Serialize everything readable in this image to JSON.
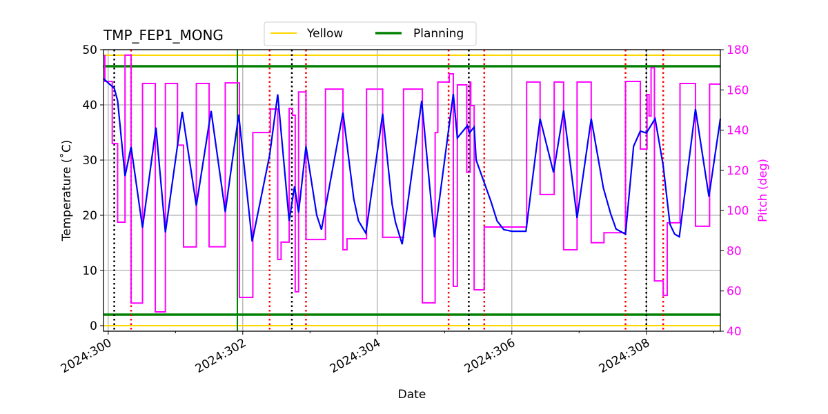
{
  "chart_data": {
    "type": "line",
    "title": "TMP_FEP1_MONG",
    "xlabel": "Date",
    "ylabel": "Temperature ($^\\circ$C)",
    "ylabel_display": "Temperature (˚C)",
    "y2label": "Pitch (deg)",
    "xlim": [
      299.93,
      309.1
    ],
    "ylim": [
      -1,
      50
    ],
    "y2lim": [
      40,
      180
    ],
    "x_ticks": [
      300,
      302,
      304,
      306,
      308
    ],
    "x_tick_labels": [
      "2024:300",
      "2024:302",
      "2024:304",
      "2024:306",
      "2024:308"
    ],
    "x_minor_ticks": [
      301,
      303,
      305,
      307,
      309
    ],
    "y_ticks": [
      0,
      10,
      20,
      30,
      40,
      50
    ],
    "y_tick_labels": [
      "0",
      "10",
      "20",
      "30",
      "40",
      "50"
    ],
    "y2_ticks": [
      40,
      60,
      80,
      100,
      120,
      140,
      160,
      180
    ],
    "y2_tick_labels": [
      "40",
      "60",
      "80",
      "100",
      "120",
      "140",
      "160",
      "180"
    ],
    "grid": true,
    "legend": {
      "placement": "top-center",
      "entries": [
        {
          "label": "Yellow",
          "color": "#ffd700"
        },
        {
          "label": "Planning",
          "color": "#008000"
        }
      ]
    },
    "colors": {
      "temperature": "#0000ff",
      "pitch": "#ff00ff",
      "yellow": "#ffd700",
      "planning": "#008000",
      "red_lines": "#ff0000",
      "black_lines": "#000000",
      "right_axis": "#ff00ff"
    },
    "hlines": {
      "yellow": [
        49,
        0
      ],
      "planning": [
        47,
        2
      ]
    },
    "vlines": {
      "black_dotted": [
        300.09,
        302.73,
        305.36,
        308.0
      ],
      "red_dotted": [
        300.34,
        302.4,
        302.94,
        305.06,
        305.59,
        307.69,
        308.25
      ],
      "green_solid": [
        301.92
      ]
    },
    "temperature": [
      [
        299.93,
        44.75
      ],
      [
        300.09,
        43
      ],
      [
        300.14,
        40.75
      ],
      [
        300.25,
        27.1
      ],
      [
        300.34,
        32.4
      ],
      [
        300.51,
        17.75
      ],
      [
        300.71,
        35.9
      ],
      [
        300.85,
        16.9
      ],
      [
        301.1,
        38.75
      ],
      [
        301.31,
        21.75
      ],
      [
        301.53,
        38.9
      ],
      [
        301.74,
        20.6
      ],
      [
        301.94,
        38.25
      ],
      [
        302.14,
        15.25
      ],
      [
        302.4,
        30.9
      ],
      [
        302.52,
        41.9
      ],
      [
        302.69,
        19
      ],
      [
        302.77,
        25.25
      ],
      [
        302.83,
        20.5
      ],
      [
        302.94,
        32.5
      ],
      [
        303.1,
        20
      ],
      [
        303.17,
        17.4
      ],
      [
        303.49,
        38.6
      ],
      [
        303.65,
        23
      ],
      [
        303.72,
        19
      ],
      [
        303.83,
        16.75
      ],
      [
        304.08,
        38.4
      ],
      [
        304.22,
        22
      ],
      [
        304.27,
        18.75
      ],
      [
        304.37,
        14.75
      ],
      [
        304.66,
        40.75
      ],
      [
        304.85,
        16
      ],
      [
        305.13,
        42
      ],
      [
        305.19,
        34
      ],
      [
        305.34,
        36.25
      ],
      [
        305.37,
        34.9
      ],
      [
        305.44,
        36
      ],
      [
        305.47,
        30
      ],
      [
        305.69,
        22.5
      ],
      [
        305.78,
        19
      ],
      [
        305.88,
        17.4
      ],
      [
        306.0,
        17.1
      ],
      [
        306.21,
        17.1
      ],
      [
        306.42,
        37.5
      ],
      [
        306.62,
        27.75
      ],
      [
        306.77,
        39
      ],
      [
        306.97,
        19.5
      ],
      [
        307.18,
        37.5
      ],
      [
        307.36,
        25
      ],
      [
        307.47,
        20.25
      ],
      [
        307.55,
        17.5
      ],
      [
        307.69,
        16.6
      ],
      [
        307.81,
        32.5
      ],
      [
        307.91,
        35.25
      ],
      [
        308.0,
        34.9
      ],
      [
        308.13,
        37.5
      ],
      [
        308.25,
        29
      ],
      [
        308.35,
        18.4
      ],
      [
        308.42,
        16.6
      ],
      [
        308.49,
        16.1
      ],
      [
        308.73,
        39.25
      ],
      [
        308.93,
        23.4
      ],
      [
        309.1,
        37.5
      ]
    ],
    "pitch": [
      [
        299.93,
        177
      ],
      [
        299.95,
        164.2
      ],
      [
        300.06,
        133.3
      ],
      [
        300.14,
        94.2
      ],
      [
        300.25,
        177.3
      ],
      [
        300.34,
        54
      ],
      [
        300.51,
        163.2
      ],
      [
        300.7,
        49.6
      ],
      [
        300.85,
        163.2
      ],
      [
        301.03,
        132.5
      ],
      [
        301.12,
        81.9
      ],
      [
        301.31,
        163.2
      ],
      [
        301.5,
        82
      ],
      [
        301.74,
        163.5
      ],
      [
        301.95,
        56.8
      ],
      [
        302.15,
        138.8
      ],
      [
        302.41,
        150.5
      ],
      [
        302.52,
        75.7
      ],
      [
        302.57,
        84.3
      ],
      [
        302.69,
        150.8
      ],
      [
        302.74,
        147.4
      ],
      [
        302.78,
        59.6
      ],
      [
        302.83,
        159
      ],
      [
        302.94,
        85.6
      ],
      [
        303.23,
        160.4
      ],
      [
        303.49,
        80.5
      ],
      [
        303.55,
        86
      ],
      [
        303.84,
        160.4
      ],
      [
        304.08,
        86.7
      ],
      [
        304.39,
        160.4
      ],
      [
        304.67,
        54.1
      ],
      [
        304.86,
        138.8
      ],
      [
        304.9,
        163.9
      ],
      [
        305.07,
        168
      ],
      [
        305.13,
        62.3
      ],
      [
        305.19,
        162.5
      ],
      [
        305.33,
        119
      ],
      [
        305.38,
        163.9
      ],
      [
        305.39,
        152.2
      ],
      [
        305.44,
        60.6
      ],
      [
        305.59,
        91.8
      ],
      [
        306.22,
        163.9
      ],
      [
        306.42,
        108
      ],
      [
        306.63,
        163.9
      ],
      [
        306.77,
        80.5
      ],
      [
        306.97,
        163.9
      ],
      [
        307.18,
        84
      ],
      [
        307.37,
        89
      ],
      [
        307.69,
        164.2
      ],
      [
        307.91,
        130.6
      ],
      [
        308.01,
        157.7
      ],
      [
        308.04,
        147
      ],
      [
        308.07,
        171
      ],
      [
        308.12,
        65
      ],
      [
        308.25,
        57.8
      ],
      [
        308.31,
        93.9
      ],
      [
        308.5,
        163.2
      ],
      [
        308.73,
        92.2
      ],
      [
        308.94,
        162.9
      ],
      [
        309.1,
        162.9
      ]
    ]
  }
}
